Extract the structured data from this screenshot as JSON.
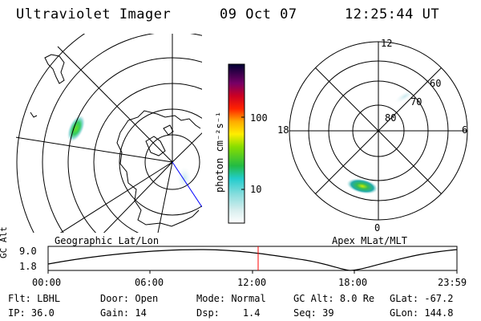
{
  "header": {
    "instrument": "Ultraviolet Imager",
    "date": "09 Oct 07",
    "time": "12:25:44 UT"
  },
  "colorbar": {
    "label": "photon cm⁻²s⁻¹",
    "ticks": [
      "100",
      "10"
    ]
  },
  "left_panel": {
    "caption": "Geographic Lat/Lon"
  },
  "right_panel": {
    "caption": "Apex MLat/MLT",
    "mlt_labels": {
      "top": "12",
      "bottom": "0",
      "left": "18",
      "right": "6"
    },
    "mlat_labels": [
      "60",
      "70",
      "80"
    ]
  },
  "timeline": {
    "ylabel": "GC Alt",
    "y_ticks": [
      "9.0",
      "1.8"
    ],
    "x_ticks": [
      "00:00",
      "06:00",
      "12:00",
      "18:00",
      "23:59"
    ],
    "marker_time": "12:25:44"
  },
  "info": {
    "flt_label": "Flt:",
    "flt": "LBHL",
    "ip_label": "IP:",
    "ip": "36.0",
    "door_label": "Door:",
    "door": "Open",
    "gain_label": "Gain:",
    "gain": "14",
    "mode_label": "Mode:",
    "mode": "Normal",
    "dsp_label": "Dsp:",
    "dsp": "1.4",
    "gcalt_label": "GC Alt:",
    "gcalt": "8.0 Re",
    "seq_label": "Seq:",
    "seq": "39",
    "glat_label": "GLat:",
    "glat": "-67.2",
    "glon_label": "GLon:",
    "glon": "144.8"
  },
  "colors": {
    "marker": "#ff0000",
    "grid": "#000000",
    "meridian": "#0000ff"
  }
}
